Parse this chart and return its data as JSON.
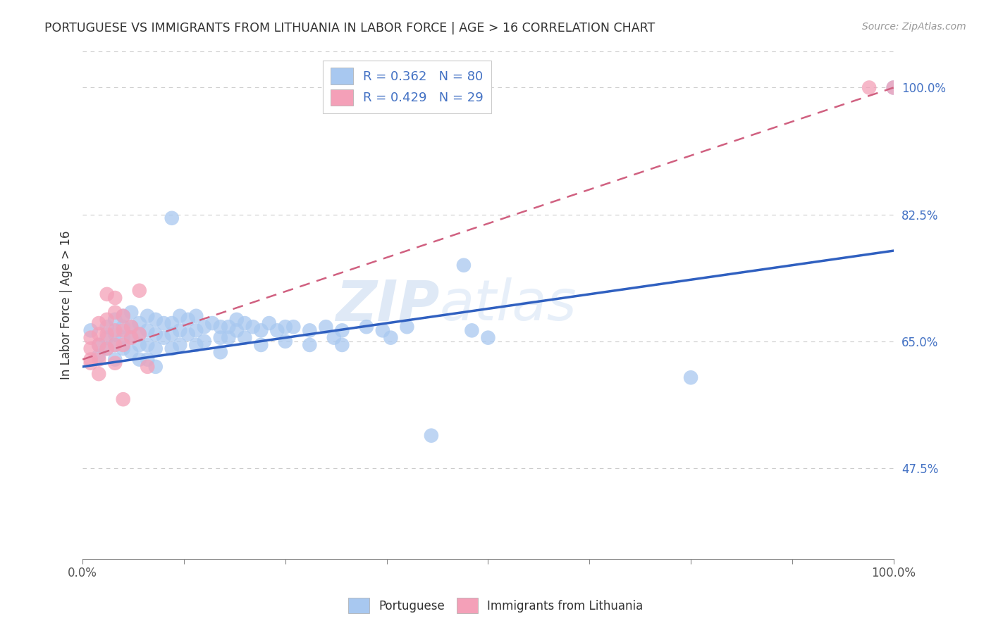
{
  "title": "PORTUGUESE VS IMMIGRANTS FROM LITHUANIA IN LABOR FORCE | AGE > 16 CORRELATION CHART",
  "source": "Source: ZipAtlas.com",
  "ylabel": "In Labor Force | Age > 16",
  "y_tick_labels_right": [
    "47.5%",
    "65.0%",
    "82.5%",
    "100.0%"
  ],
  "blue_color": "#a8c8f0",
  "pink_color": "#f4a0b8",
  "blue_line_color": "#3060c0",
  "pink_line_color": "#d06080",
  "watermark_zip": "ZIP",
  "watermark_atlas": "atlas",
  "background_color": "#ffffff",
  "R_blue": 0.362,
  "N_blue": 80,
  "R_pink": 0.429,
  "N_pink": 29,
  "xlim": [
    0.0,
    1.0
  ],
  "ylim": [
    0.35,
    1.05
  ],
  "y_ticks": [
    0.475,
    0.65,
    0.825,
    1.0
  ],
  "grid_color": "#cccccc",
  "blue_line_x": [
    0.0,
    1.0
  ],
  "blue_line_y": [
    0.615,
    0.775
  ],
  "pink_line_x": [
    0.0,
    1.0
  ],
  "pink_line_y": [
    0.625,
    1.0
  ],
  "blue_points": [
    [
      0.01,
      0.665
    ],
    [
      0.02,
      0.645
    ],
    [
      0.02,
      0.63
    ],
    [
      0.03,
      0.67
    ],
    [
      0.03,
      0.655
    ],
    [
      0.03,
      0.64
    ],
    [
      0.04,
      0.68
    ],
    [
      0.04,
      0.66
    ],
    [
      0.04,
      0.645
    ],
    [
      0.04,
      0.625
    ],
    [
      0.05,
      0.685
    ],
    [
      0.05,
      0.67
    ],
    [
      0.05,
      0.655
    ],
    [
      0.05,
      0.64
    ],
    [
      0.06,
      0.69
    ],
    [
      0.06,
      0.67
    ],
    [
      0.06,
      0.655
    ],
    [
      0.06,
      0.635
    ],
    [
      0.07,
      0.675
    ],
    [
      0.07,
      0.66
    ],
    [
      0.07,
      0.645
    ],
    [
      0.07,
      0.625
    ],
    [
      0.08,
      0.685
    ],
    [
      0.08,
      0.665
    ],
    [
      0.08,
      0.645
    ],
    [
      0.08,
      0.625
    ],
    [
      0.09,
      0.68
    ],
    [
      0.09,
      0.66
    ],
    [
      0.09,
      0.64
    ],
    [
      0.09,
      0.615
    ],
    [
      0.1,
      0.675
    ],
    [
      0.1,
      0.655
    ],
    [
      0.11,
      0.82
    ],
    [
      0.11,
      0.675
    ],
    [
      0.11,
      0.66
    ],
    [
      0.11,
      0.64
    ],
    [
      0.12,
      0.685
    ],
    [
      0.12,
      0.665
    ],
    [
      0.12,
      0.645
    ],
    [
      0.13,
      0.68
    ],
    [
      0.13,
      0.66
    ],
    [
      0.14,
      0.685
    ],
    [
      0.14,
      0.665
    ],
    [
      0.14,
      0.645
    ],
    [
      0.15,
      0.67
    ],
    [
      0.15,
      0.65
    ],
    [
      0.16,
      0.675
    ],
    [
      0.17,
      0.67
    ],
    [
      0.17,
      0.655
    ],
    [
      0.17,
      0.635
    ],
    [
      0.18,
      0.67
    ],
    [
      0.18,
      0.655
    ],
    [
      0.19,
      0.68
    ],
    [
      0.19,
      0.665
    ],
    [
      0.2,
      0.675
    ],
    [
      0.2,
      0.655
    ],
    [
      0.21,
      0.67
    ],
    [
      0.22,
      0.665
    ],
    [
      0.22,
      0.645
    ],
    [
      0.23,
      0.675
    ],
    [
      0.24,
      0.665
    ],
    [
      0.25,
      0.67
    ],
    [
      0.25,
      0.65
    ],
    [
      0.26,
      0.67
    ],
    [
      0.28,
      0.665
    ],
    [
      0.28,
      0.645
    ],
    [
      0.3,
      0.67
    ],
    [
      0.31,
      0.655
    ],
    [
      0.32,
      0.665
    ],
    [
      0.32,
      0.645
    ],
    [
      0.35,
      0.67
    ],
    [
      0.37,
      0.665
    ],
    [
      0.38,
      0.655
    ],
    [
      0.4,
      0.67
    ],
    [
      0.43,
      0.52
    ],
    [
      0.47,
      0.755
    ],
    [
      0.48,
      0.665
    ],
    [
      0.5,
      0.655
    ],
    [
      0.75,
      0.6
    ],
    [
      1.0,
      1.0
    ]
  ],
  "pink_points": [
    [
      0.01,
      0.62
    ],
    [
      0.01,
      0.655
    ],
    [
      0.01,
      0.64
    ],
    [
      0.01,
      0.625
    ],
    [
      0.02,
      0.675
    ],
    [
      0.02,
      0.66
    ],
    [
      0.02,
      0.645
    ],
    [
      0.02,
      0.625
    ],
    [
      0.02,
      0.605
    ],
    [
      0.03,
      0.715
    ],
    [
      0.03,
      0.68
    ],
    [
      0.03,
      0.66
    ],
    [
      0.03,
      0.64
    ],
    [
      0.04,
      0.71
    ],
    [
      0.04,
      0.69
    ],
    [
      0.04,
      0.665
    ],
    [
      0.04,
      0.645
    ],
    [
      0.04,
      0.62
    ],
    [
      0.05,
      0.685
    ],
    [
      0.05,
      0.665
    ],
    [
      0.05,
      0.645
    ],
    [
      0.05,
      0.57
    ],
    [
      0.06,
      0.67
    ],
    [
      0.06,
      0.655
    ],
    [
      0.07,
      0.72
    ],
    [
      0.07,
      0.66
    ],
    [
      0.08,
      0.615
    ],
    [
      0.97,
      1.0
    ],
    [
      1.0,
      1.0
    ]
  ]
}
